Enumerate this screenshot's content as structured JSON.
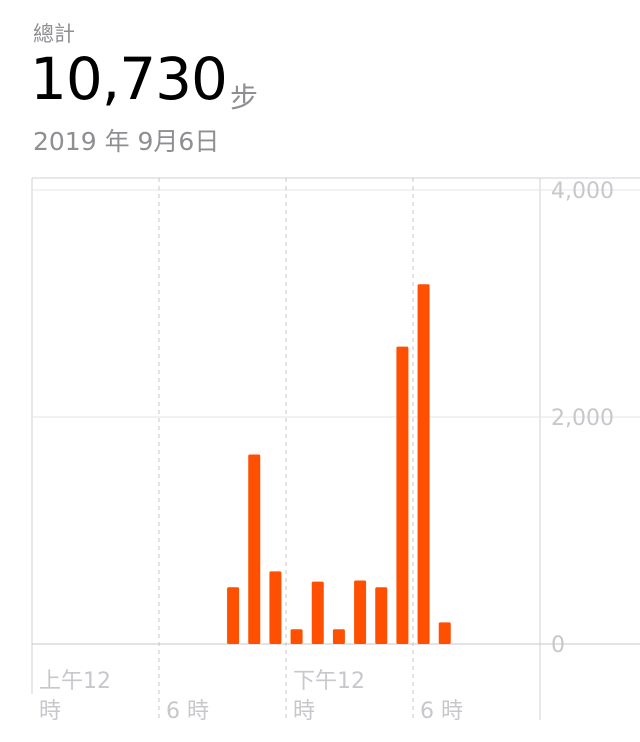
{
  "header": {
    "label": "總計",
    "total": "10,730",
    "unit": "步",
    "date": "2019 年 9月6日"
  },
  "chart_data": {
    "type": "bar",
    "title": "",
    "xlabel": "",
    "ylabel": "",
    "ylim": [
      0,
      4000
    ],
    "yticks": [
      "4,000",
      "2,000",
      "0"
    ],
    "xticks": [
      {
        "line1": "上午12",
        "line2": "時"
      },
      {
        "line1": "",
        "line2": "6 時"
      },
      {
        "line1": "下午12",
        "line2": "時"
      },
      {
        "line1": "",
        "line2": "6 時"
      }
    ],
    "x_unit": "hour of day (0–24)",
    "bar_color": "#ff4f00",
    "hours": [
      9,
      10,
      11,
      12,
      13,
      14,
      15,
      16,
      17,
      18,
      19
    ],
    "values": [
      500,
      1670,
      640,
      130,
      550,
      130,
      560,
      500,
      2620,
      3170,
      190
    ]
  }
}
